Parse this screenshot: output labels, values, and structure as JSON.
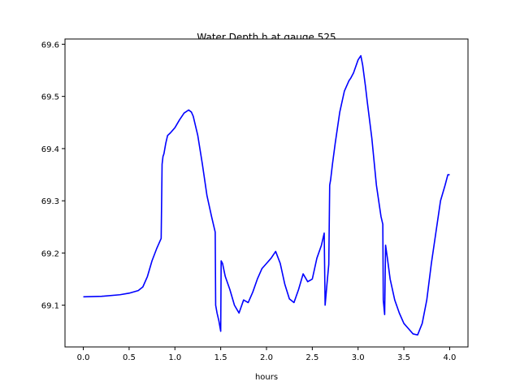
{
  "chart_data": {
    "type": "line",
    "title": "Water Depth h at gauge 525",
    "xlabel": "hours",
    "ylabel": "",
    "xlim": [
      -0.2,
      4.2
    ],
    "ylim": [
      69.02,
      69.61
    ],
    "xticks": [
      0.0,
      0.5,
      1.0,
      1.5,
      2.0,
      2.5,
      3.0,
      3.5,
      4.0
    ],
    "xtick_labels": [
      "0.0",
      "0.5",
      "1.0",
      "1.5",
      "2.0",
      "2.5",
      "3.0",
      "3.5",
      "4.0"
    ],
    "yticks": [
      69.1,
      69.2,
      69.3,
      69.4,
      69.5,
      69.6
    ],
    "ytick_labels": [
      "69.1",
      "69.2",
      "69.3",
      "69.4",
      "69.5",
      "69.6"
    ],
    "grid": false,
    "series": [
      {
        "color": "#0000ff",
        "x": [
          0.0,
          0.2,
          0.4,
          0.5,
          0.6,
          0.65,
          0.7,
          0.75,
          0.8,
          0.85,
          0.86,
          0.87,
          0.88,
          0.9,
          0.92,
          0.95,
          1.0,
          1.05,
          1.1,
          1.15,
          1.18,
          1.2,
          1.25,
          1.3,
          1.35,
          1.4,
          1.44,
          1.445,
          1.46,
          1.48,
          1.5,
          1.505,
          1.52,
          1.55,
          1.6,
          1.65,
          1.7,
          1.75,
          1.8,
          1.85,
          1.9,
          1.95,
          2.0,
          2.05,
          2.1,
          2.15,
          2.2,
          2.25,
          2.3,
          2.35,
          2.4,
          2.45,
          2.5,
          2.55,
          2.6,
          2.63,
          2.64,
          2.66,
          2.68,
          2.69,
          2.7,
          2.72,
          2.75,
          2.8,
          2.85,
          2.9,
          2.92,
          2.95,
          3.0,
          3.03,
          3.05,
          3.08,
          3.1,
          3.15,
          3.2,
          3.25,
          3.27,
          3.275,
          3.29,
          3.3,
          3.32,
          3.35,
          3.4,
          3.45,
          3.5,
          3.55,
          3.6,
          3.65,
          3.7,
          3.75,
          3.8,
          3.85,
          3.9,
          3.95,
          3.98,
          4.0
        ],
        "y": [
          69.116,
          69.117,
          69.12,
          69.123,
          69.128,
          69.135,
          69.155,
          69.185,
          69.208,
          69.228,
          69.37,
          69.385,
          69.39,
          69.41,
          69.425,
          69.43,
          69.44,
          69.455,
          69.468,
          69.474,
          69.47,
          69.462,
          69.425,
          69.37,
          69.31,
          69.27,
          69.24,
          69.1,
          69.085,
          69.07,
          69.05,
          69.185,
          69.18,
          69.155,
          69.13,
          69.1,
          69.085,
          69.11,
          69.105,
          69.125,
          69.15,
          69.17,
          69.18,
          69.19,
          69.203,
          69.18,
          69.14,
          69.112,
          69.105,
          69.13,
          69.16,
          69.145,
          69.15,
          69.19,
          69.215,
          69.238,
          69.1,
          69.14,
          69.178,
          69.33,
          69.34,
          69.37,
          69.41,
          69.47,
          69.51,
          69.53,
          69.535,
          69.545,
          69.57,
          69.578,
          69.56,
          69.52,
          69.49,
          69.42,
          69.33,
          69.27,
          69.255,
          69.11,
          69.082,
          69.215,
          69.19,
          69.15,
          69.11,
          69.085,
          69.065,
          69.055,
          69.045,
          69.043,
          69.065,
          69.11,
          69.18,
          69.24,
          69.3,
          69.33,
          69.35,
          69.35
        ]
      }
    ]
  }
}
